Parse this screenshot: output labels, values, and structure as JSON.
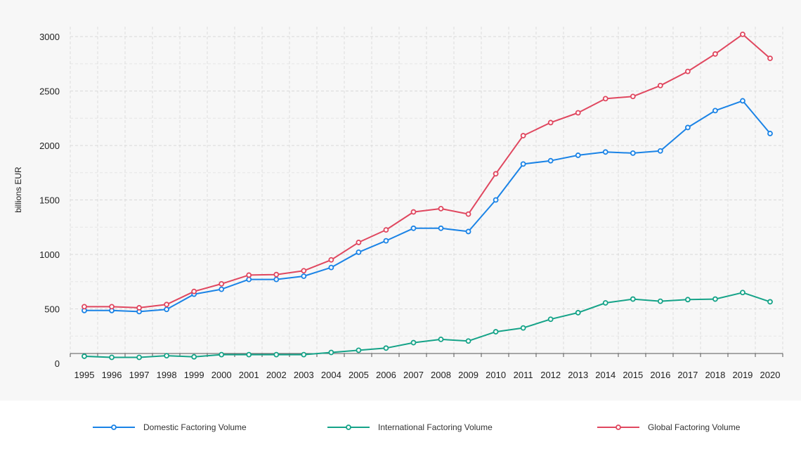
{
  "chart_data": {
    "type": "line",
    "title": "",
    "xlabel": "",
    "ylabel": "billions EUR",
    "ylim": [
      0,
      3000
    ],
    "yticks": [
      0,
      500,
      1000,
      1500,
      2000,
      2500,
      3000
    ],
    "grid": true,
    "legend_position": "bottom",
    "categories": [
      "1995",
      "1996",
      "1997",
      "1998",
      "1999",
      "2000",
      "2001",
      "2002",
      "2003",
      "2004",
      "2005",
      "2006",
      "2007",
      "2008",
      "2009",
      "2010",
      "2011",
      "2012",
      "2013",
      "2014",
      "2015",
      "2016",
      "2017",
      "2018",
      "2019",
      "2020"
    ],
    "series": [
      {
        "name": "Domestic Factoring Volume",
        "color": "#1a83e6",
        "values": [
          485,
          485,
          475,
          495,
          635,
          680,
          770,
          770,
          800,
          880,
          1020,
          1125,
          1240,
          1240,
          1210,
          1500,
          1830,
          1860,
          1910,
          1940,
          1930,
          1950,
          2165,
          2320,
          2410,
          2110
        ]
      },
      {
        "name": "International Factoring Volume",
        "color": "#15a388",
        "values": [
          65,
          55,
          55,
          70,
          60,
          80,
          80,
          80,
          80,
          100,
          120,
          140,
          190,
          220,
          205,
          290,
          325,
          405,
          465,
          555,
          590,
          570,
          585,
          590,
          650,
          565
        ]
      },
      {
        "name": "Global Factoring Volume",
        "color": "#e0475f",
        "values": [
          520,
          520,
          510,
          540,
          660,
          730,
          810,
          815,
          850,
          950,
          1110,
          1225,
          1390,
          1420,
          1370,
          1740,
          2090,
          2210,
          2300,
          2430,
          2450,
          2550,
          2680,
          2840,
          3020,
          2800
        ]
      }
    ]
  }
}
